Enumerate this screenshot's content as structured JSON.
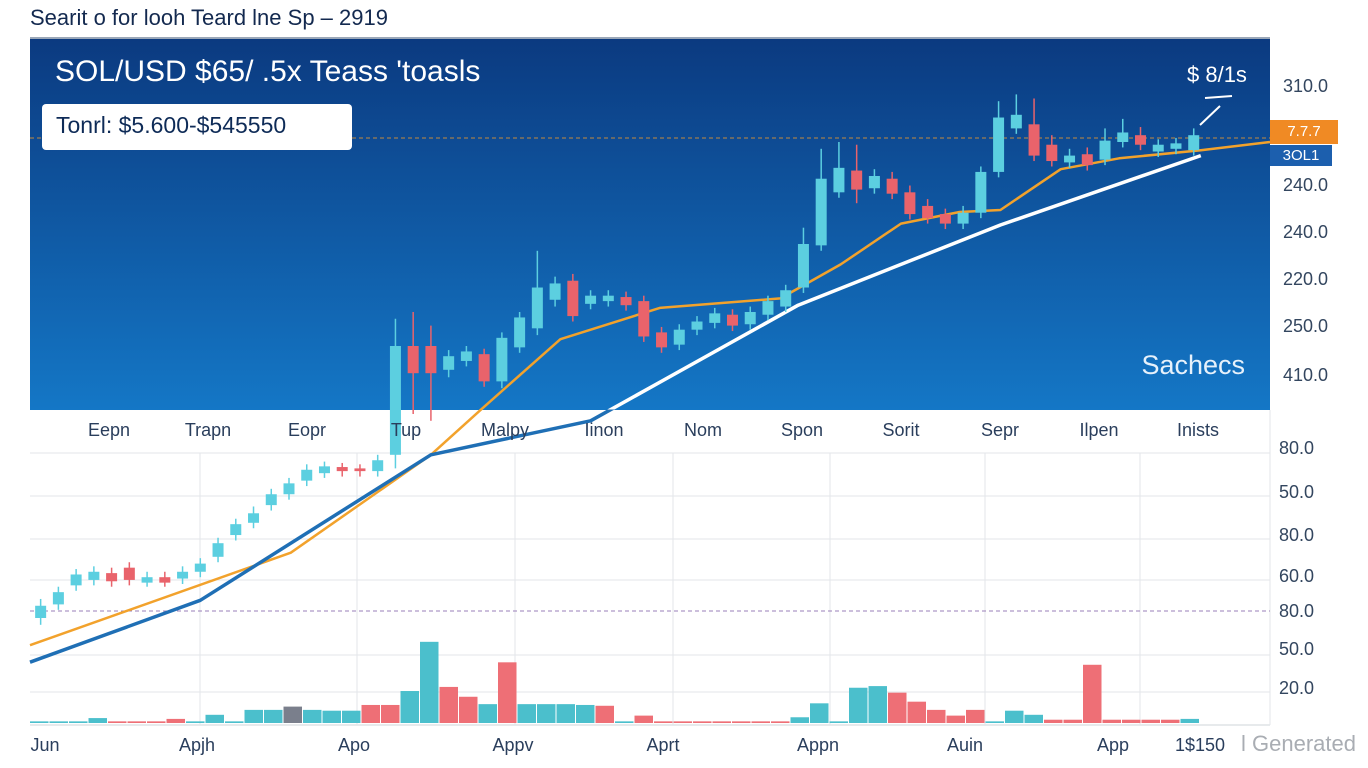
{
  "chart_data": {
    "type": "candlestick",
    "title": "Searit o for looh Teard lne Sp – 2919",
    "header": "SOL/USD $65/ .5x Teass 'toasls",
    "range_label": "Tonrl: $5.600-$545550",
    "corner_label": "$ 8/1s",
    "panel_label": "Sachecs",
    "price_tags": [
      "7.7.7",
      "3OL1"
    ],
    "top_axis_labels": [
      "310.0",
      "240.0",
      "240.0",
      "220.0",
      "250.0",
      "410.0"
    ],
    "mid_x_labels": [
      "Eepn",
      "Trapn",
      "Eopr",
      "Tup",
      "Malpy",
      "Iinon",
      "Nom",
      "Spon",
      "Sorit",
      "Sepr",
      "Ilpen",
      "Inists"
    ],
    "lower_axis_labels": [
      "80.0",
      "50.0",
      "80.0",
      "60.0",
      "80.0",
      "50.0",
      "20.0"
    ],
    "bottom_x_labels": [
      "Jun",
      "Apjh",
      "Apo",
      "Appv",
      "Aprt",
      "Appn",
      "Auin",
      "App",
      "1$150"
    ],
    "watermark": "l Generated",
    "xlim": [
      0.4,
      70.3
    ],
    "ylim": [
      0,
      100
    ],
    "up_color": "#5ccfe0",
    "down_color": "#e9636b",
    "candles": {
      "x": [
        1,
        2,
        3,
        4,
        5,
        6,
        7,
        8,
        9,
        10,
        11,
        12,
        13,
        14,
        15,
        16,
        17,
        18,
        19,
        20,
        21,
        22,
        23,
        24,
        25,
        26,
        27,
        28,
        29,
        30,
        31,
        32,
        33,
        34,
        35,
        36,
        37,
        38,
        39,
        40,
        41,
        42,
        43,
        44,
        45,
        46,
        47,
        48,
        49,
        50,
        51,
        52,
        53,
        54,
        55,
        56,
        57,
        58,
        59,
        60,
        61,
        62,
        63,
        64,
        65,
        66
      ],
      "open": [
        15.0,
        17.0,
        19.8,
        20.6,
        21.6,
        22.4,
        20.2,
        21.0,
        20.8,
        21.8,
        24.0,
        27.2,
        29.0,
        31.6,
        33.2,
        35.2,
        36.3,
        37.2,
        37.0,
        36.6,
        39.0,
        55.0,
        55.0,
        51.5,
        52.8,
        53.8,
        49.8,
        54.8,
        57.6,
        61.8,
        64.6,
        61.2,
        61.6,
        62.2,
        61.6,
        57.0,
        55.2,
        57.4,
        58.4,
        59.6,
        58.2,
        59.6,
        60.8,
        63.6,
        69.8,
        77.6,
        80.8,
        78.2,
        79.6,
        77.6,
        75.6,
        74.4,
        73.0,
        74.6,
        80.6,
        87.0,
        87.6,
        84.6,
        82.0,
        83.2,
        82.4,
        85.0,
        86.0,
        83.6,
        84.0,
        83.8
      ],
      "high": [
        17.8,
        19.6,
        22.2,
        22.6,
        22.4,
        23.2,
        21.8,
        21.8,
        22.6,
        23.8,
        26.8,
        29.6,
        31.4,
        34.0,
        35.6,
        37.6,
        38.0,
        37.8,
        37.6,
        39.0,
        59.0,
        60.0,
        58.0,
        54.4,
        55.0,
        54.6,
        57.0,
        60.0,
        69.0,
        65.2,
        65.6,
        63.2,
        63.2,
        63.0,
        62.4,
        57.8,
        58.2,
        59.4,
        60.6,
        60.4,
        60.8,
        62.4,
        64.0,
        72.4,
        84.0,
        85.0,
        84.6,
        81.0,
        80.6,
        78.6,
        76.6,
        75.2,
        75.6,
        81.4,
        91.0,
        92.0,
        91.4,
        86.0,
        84.0,
        84.2,
        87.0,
        88.4,
        87.2,
        85.4,
        85.6,
        87.0
      ],
      "low": [
        14.0,
        16.2,
        19.0,
        19.8,
        19.6,
        19.8,
        19.6,
        19.6,
        20.0,
        21.0,
        23.2,
        26.4,
        28.2,
        30.8,
        32.4,
        34.4,
        35.6,
        35.8,
        35.8,
        35.8,
        37.0,
        45.0,
        44.0,
        50.4,
        52.0,
        49.0,
        48.8,
        54.0,
        56.6,
        60.8,
        58.6,
        60.4,
        60.8,
        60.2,
        55.6,
        54.0,
        54.4,
        56.6,
        57.6,
        57.2,
        57.4,
        58.8,
        60.0,
        62.8,
        69.0,
        76.8,
        76.0,
        77.4,
        76.6,
        73.6,
        73.0,
        72.2,
        72.2,
        73.8,
        79.8,
        86.2,
        82.2,
        81.4,
        81.2,
        80.8,
        81.6,
        84.2,
        83.8,
        82.8,
        83.2,
        83.0
      ],
      "close": [
        16.8,
        18.8,
        21.4,
        21.8,
        20.4,
        20.6,
        21.0,
        20.2,
        21.8,
        23.0,
        26.0,
        28.8,
        30.4,
        33.2,
        34.8,
        36.8,
        37.3,
        36.6,
        36.6,
        38.2,
        55.0,
        51.0,
        51.0,
        53.5,
        54.2,
        49.8,
        56.2,
        59.2,
        63.6,
        64.2,
        59.4,
        62.4,
        62.4,
        61.0,
        56.4,
        54.8,
        57.4,
        58.6,
        59.8,
        58.0,
        60.0,
        61.6,
        63.2,
        70.0,
        79.6,
        81.2,
        78.0,
        80.0,
        77.4,
        74.4,
        73.8,
        73.0,
        74.6,
        80.6,
        88.6,
        89.0,
        83.0,
        82.2,
        83.0,
        81.6,
        85.2,
        86.4,
        84.6,
        84.6,
        84.8,
        86.0
      ]
    },
    "lines": [
      {
        "x": [
          0.4,
          15.1,
          23.0,
          25.8,
          30.3,
          35.9,
          42.7,
          46.1,
          49.5,
          52.8,
          55.1,
          58.5,
          61.8,
          66.4,
          70.3
        ],
        "values": [
          11,
          24.6,
          39,
          45.6,
          56,
          60.6,
          62,
          67,
          73,
          74.7,
          75,
          81,
          82.6,
          83.8,
          85
        ],
        "color": "#f2a22c"
      },
      {
        "x": [
          0.4,
          10.0,
          23.0,
          32.0,
          43.7,
          55.1,
          66.4
        ],
        "values": [
          8.5,
          17.6,
          39,
          44,
          61,
          72.8,
          83
        ],
        "color": "#ffffff",
        "color_lower": "#1f6fb5"
      }
    ],
    "volume": {
      "vlim": [
        0,
        100
      ],
      "values": [
        2,
        2,
        2,
        6,
        2,
        2,
        2,
        5,
        2,
        10,
        2,
        16,
        16,
        20,
        16,
        15,
        15,
        22,
        22,
        39,
        99,
        44,
        32,
        23,
        74,
        23,
        23,
        23,
        22,
        21,
        2,
        9,
        2,
        2,
        2,
        2,
        2,
        2,
        2,
        7,
        24,
        2,
        43,
        45,
        37,
        26,
        16,
        9,
        16,
        2,
        15,
        10,
        4,
        4,
        71,
        4,
        4,
        4,
        4,
        5
      ],
      "colors": [
        "#4bbfcc",
        "#4bbfcc",
        "#4bbfcc",
        "#4bbfcc",
        "#ee6f76",
        "#ee6f76",
        "#ee6f76",
        "#ee6f76",
        "#4bbfcc",
        "#4bbfcc",
        "#4bbfcc",
        "#4bbfcc",
        "#4bbfcc",
        "#7a7f8c",
        "#4bbfcc",
        "#4bbfcc",
        "#4bbfcc",
        "#ee6f76",
        "#ee6f76",
        "#4bbfcc",
        "#4bbfcc",
        "#ee6f76",
        "#ee6f76",
        "#4bbfcc",
        "#ee6f76",
        "#4bbfcc",
        "#4bbfcc",
        "#4bbfcc",
        "#4bbfcc",
        "#ee6f76",
        "#4bbfcc",
        "#ee6f76",
        "#ee6f76",
        "#ee6f76",
        "#ee6f76",
        "#ee6f76",
        "#ee6f76",
        "#ee6f76",
        "#ee6f76",
        "#4bbfcc",
        "#4bbfcc",
        "#4bbfcc",
        "#4bbfcc",
        "#4bbfcc",
        "#ee6f76",
        "#ee6f76",
        "#ee6f76",
        "#ee6f76",
        "#ee6f76",
        "#4bbfcc",
        "#4bbfcc",
        "#4bbfcc",
        "#ee6f76",
        "#ee6f76",
        "#ee6f76",
        "#ee6f76",
        "#ee6f76",
        "#ee6f76",
        "#ee6f76",
        "#4bbfcc"
      ]
    }
  }
}
